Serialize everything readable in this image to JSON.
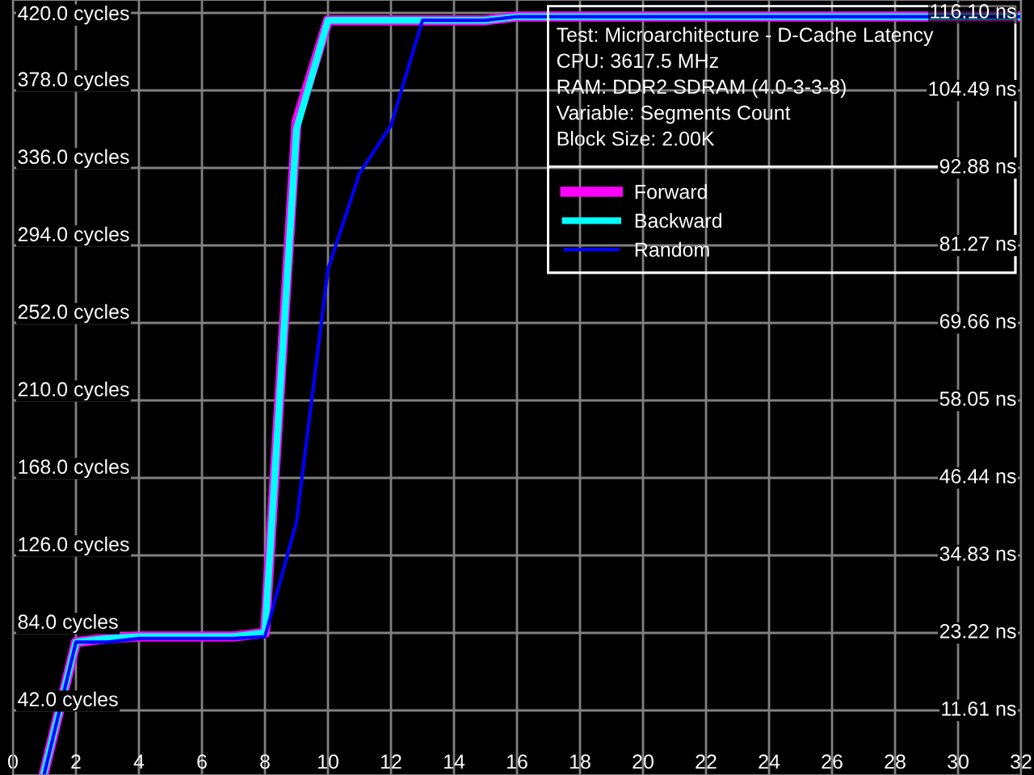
{
  "chart_data": {
    "type": "line",
    "title": "Test: Microarchitecture - D-Cache Latency",
    "annotations": [
      "CPU: 3617.5 MHz",
      "RAM: DDR2 SDRAM (4.0-3-3-8)",
      "Variable: Segments Count",
      "Block Size: 2.00K"
    ],
    "x": [
      1,
      2,
      3,
      4,
      5,
      6,
      7,
      8,
      9,
      10,
      11,
      12,
      13,
      14,
      15,
      16,
      17,
      18,
      19,
      20,
      21,
      22,
      23,
      24,
      25,
      26,
      27,
      28,
      29,
      30,
      31,
      32
    ],
    "series": [
      {
        "name": "Forward",
        "color": "#ff00ff",
        "values": [
          9,
          79,
          81,
          82,
          82,
          82,
          82,
          84,
          361,
          416,
          416,
          416,
          416,
          416,
          416,
          418,
          418,
          418,
          418,
          418,
          418,
          418,
          418,
          418,
          418,
          418,
          418,
          418,
          418,
          418,
          418,
          418
        ]
      },
      {
        "name": "Backward",
        "color": "#00ffff",
        "values": [
          9,
          79,
          81,
          82,
          82,
          82,
          82,
          84,
          357,
          416,
          416,
          416,
          416,
          416,
          416,
          418,
          418,
          418,
          418,
          418,
          418,
          418,
          418,
          418,
          418,
          418,
          418,
          418,
          418,
          418,
          418,
          418
        ]
      },
      {
        "name": "Random",
        "color": "#0000ff",
        "values": [
          8,
          79,
          79,
          81,
          81,
          81,
          81,
          82,
          144,
          281,
          333,
          359,
          416,
          416,
          416,
          418,
          418,
          418,
          418,
          418,
          418,
          418,
          418,
          418,
          418,
          418,
          418,
          418,
          418,
          418,
          418,
          418
        ]
      }
    ],
    "xlim": [
      0,
      32
    ],
    "xticks": [
      0,
      2,
      4,
      6,
      8,
      10,
      12,
      14,
      16,
      18,
      20,
      22,
      24,
      26,
      28,
      30,
      32
    ],
    "ylim": [
      7,
      427
    ],
    "yticks": [
      {
        "value": 42,
        "label": "42.0 cycles"
      },
      {
        "value": 84,
        "label": "84.0 cycles"
      },
      {
        "value": 126,
        "label": "126.0 cycles"
      },
      {
        "value": 168,
        "label": "168.0 cycles"
      },
      {
        "value": 210,
        "label": "210.0 cycles"
      },
      {
        "value": 252,
        "label": "252.0 cycles"
      },
      {
        "value": 294,
        "label": "294.0 cycles"
      },
      {
        "value": 336,
        "label": "336.0 cycles"
      },
      {
        "value": 378,
        "label": "378.0 cycles"
      },
      {
        "value": 420,
        "label": "420.0 cycles"
      }
    ],
    "y2lim": [
      1.935,
      118.04
    ],
    "y2ticks": [
      {
        "value": 11.61,
        "label": "11.61 ns"
      },
      {
        "value": 23.22,
        "label": "23.22 ns"
      },
      {
        "value": 34.83,
        "label": "34.83 ns"
      },
      {
        "value": 46.44,
        "label": "46.44 ns"
      },
      {
        "value": 58.05,
        "label": "58.05 ns"
      },
      {
        "value": 69.66,
        "label": "69.66 ns"
      },
      {
        "value": 81.27,
        "label": "81.27 ns"
      },
      {
        "value": 92.88,
        "label": "92.88 ns"
      },
      {
        "value": 104.49,
        "label": "104.49 ns"
      },
      {
        "value": 116.1,
        "label": "116.10 ns"
      }
    ],
    "grid": true,
    "legend": "top right",
    "marker": "none",
    "line_style": "solid"
  }
}
